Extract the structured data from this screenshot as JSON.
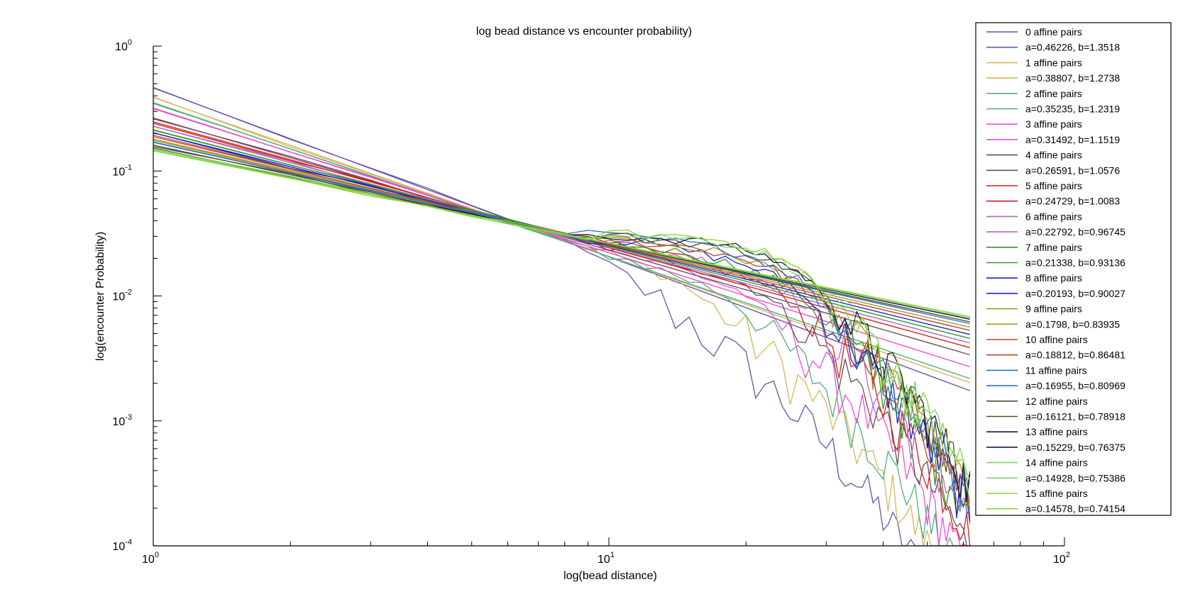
{
  "chart_data": {
    "type": "line",
    "title": "log bead distance vs encounter probability)",
    "xlabel": "log(bead distance)",
    "ylabel": "log(encounter Probability)",
    "xscale": "log",
    "yscale": "log",
    "xlim": [
      1,
      100
    ],
    "ylim": [
      0.0001,
      1
    ],
    "x_ticks": [
      {
        "base": "10",
        "exp": "0"
      },
      {
        "base": "10",
        "exp": "1"
      },
      {
        "base": "10",
        "exp": "2"
      }
    ],
    "y_ticks": [
      {
        "base": "10",
        "exp": "-4"
      },
      {
        "base": "10",
        "exp": "-3"
      },
      {
        "base": "10",
        "exp": "-2"
      },
      {
        "base": "10",
        "exp": "-1"
      },
      {
        "base": "10",
        "exp": "0"
      }
    ],
    "grid": false,
    "legend_position": "top-right, outside",
    "x_max_data": 62,
    "series": [
      {
        "name": "0 affine pairs",
        "fit": "a=0.46226, b=1.3518",
        "a": 0.46226,
        "b": 1.3518,
        "color": "#6a52a8",
        "knee": 8
      },
      {
        "name": "1 affine pairs",
        "fit": "a=0.38807, b=1.2738",
        "a": 0.38807,
        "b": 1.2738,
        "color": "#d8b55a",
        "knee": 14
      },
      {
        "name": "2 affine pairs",
        "fit": "a=0.35235, b=1.2319",
        "a": 0.35235,
        "b": 1.2319,
        "color": "#4fae7c",
        "knee": 18
      },
      {
        "name": "3 affine pairs",
        "fit": "a=0.31492, b=1.1519",
        "a": 0.31492,
        "b": 1.1519,
        "color": "#ee4fd2",
        "knee": 20
      },
      {
        "name": "4 affine pairs",
        "fit": "a=0.26591, b=1.0576",
        "a": 0.26591,
        "b": 1.0576,
        "color": "#6b4a5a",
        "knee": 22
      },
      {
        "name": "5 affine pairs",
        "fit": "a=0.24729, b=1.0083",
        "a": 0.24729,
        "b": 1.0083,
        "color": "#d81e1e",
        "knee": 24
      },
      {
        "name": "6 affine pairs",
        "fit": "a=0.22792, b=0.96745",
        "a": 0.22792,
        "b": 0.96745,
        "color": "#b06ab8",
        "knee": 25
      },
      {
        "name": "7 affine pairs",
        "fit": "a=0.21338, b=0.93136",
        "a": 0.21338,
        "b": 0.93136,
        "color": "#2f9a1f",
        "knee": 26
      },
      {
        "name": "8 affine pairs",
        "fit": "a=0.20193, b=0.90027",
        "a": 0.20193,
        "b": 0.90027,
        "color": "#1a22cc",
        "knee": 26
      },
      {
        "name": "9 affine pairs",
        "fit": "a=0.1798, b=0.83935",
        "a": 0.1798,
        "b": 0.83935,
        "color": "#a69220",
        "knee": 27
      },
      {
        "name": "10 affine pairs",
        "fit": "a=0.18812, b=0.86481",
        "a": 0.18812,
        "b": 0.86481,
        "color": "#c04628",
        "knee": 27
      },
      {
        "name": "11 affine pairs",
        "fit": "a=0.16955, b=0.80969",
        "a": 0.16955,
        "b": 0.80969,
        "color": "#2472c8",
        "knee": 27
      },
      {
        "name": "12 affine pairs",
        "fit": "a=0.16121, b=0.78918",
        "a": 0.16121,
        "b": 0.78918,
        "color": "#5a4a28",
        "knee": 28
      },
      {
        "name": "13 affine pairs",
        "fit": "a=0.15229, b=0.76375",
        "a": 0.15229,
        "b": 0.76375,
        "color": "#1e1442",
        "knee": 28
      },
      {
        "name": "14 affine pairs",
        "fit": "a=0.14928, b=0.75386",
        "a": 0.14928,
        "b": 0.75386,
        "color": "#7ad66a",
        "knee": 28
      },
      {
        "name": "15 affine pairs",
        "fit": "a=0.14578, b=0.74154",
        "a": 0.14578,
        "b": 0.74154,
        "color": "#86d42a",
        "knee": 28
      }
    ]
  }
}
